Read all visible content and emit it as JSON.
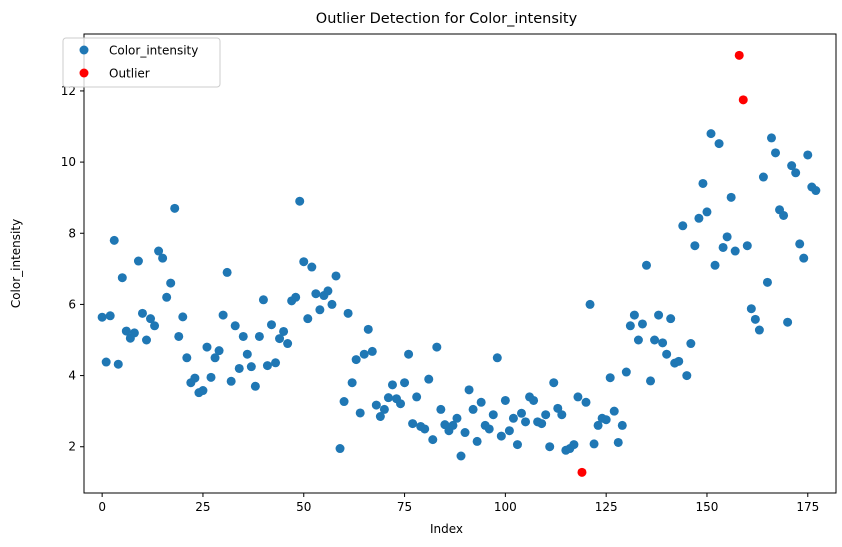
{
  "chart_data": {
    "type": "scatter",
    "title": "Outlier Detection for Color_intensity",
    "xlabel": "Index",
    "ylabel": "Color_intensity",
    "xlim": [
      -4.5,
      182
    ],
    "ylim": [
      0.7,
      13.6
    ],
    "xticks": [
      0,
      25,
      50,
      75,
      100,
      125,
      150,
      175
    ],
    "yticks": [
      2,
      4,
      6,
      8,
      10,
      12
    ],
    "grid": false,
    "legend": "top-left",
    "series": [
      {
        "name": "Color_intensity",
        "color": "#1f77b4",
        "x": [
          0,
          1,
          2,
          3,
          4,
          5,
          6,
          7,
          8,
          9,
          10,
          11,
          12,
          13,
          14,
          15,
          16,
          17,
          18,
          19,
          20,
          21,
          22,
          23,
          24,
          25,
          26,
          27,
          28,
          29,
          30,
          31,
          32,
          33,
          34,
          35,
          36,
          37,
          38,
          39,
          40,
          41,
          42,
          43,
          44,
          45,
          46,
          47,
          48,
          49,
          50,
          51,
          52,
          53,
          54,
          55,
          56,
          57,
          58,
          59,
          60,
          61,
          62,
          63,
          64,
          65,
          66,
          67,
          68,
          69,
          70,
          71,
          72,
          73,
          74,
          75,
          76,
          77,
          78,
          79,
          80,
          81,
          82,
          83,
          84,
          85,
          86,
          87,
          88,
          89,
          90,
          91,
          92,
          93,
          94,
          95,
          96,
          97,
          98,
          99,
          100,
          101,
          102,
          103,
          104,
          105,
          106,
          107,
          108,
          109,
          110,
          111,
          112,
          113,
          114,
          115,
          116,
          117,
          118,
          120,
          121,
          122,
          123,
          124,
          125,
          126,
          127,
          128,
          129,
          130,
          131,
          132,
          133,
          134,
          135,
          136,
          137,
          138,
          139,
          140,
          141,
          142,
          143,
          144,
          145,
          146,
          147,
          148,
          149,
          150,
          151,
          152,
          153,
          154,
          155,
          156,
          157,
          160,
          161,
          162,
          163,
          164,
          165,
          166,
          167,
          168,
          169,
          170,
          171,
          172,
          173,
          174,
          175,
          176,
          177
        ],
        "y": [
          5.64,
          4.38,
          5.68,
          7.8,
          4.32,
          6.75,
          5.25,
          5.05,
          5.2,
          7.22,
          5.75,
          5.0,
          5.6,
          5.4,
          7.5,
          7.3,
          6.2,
          6.6,
          8.7,
          5.1,
          5.65,
          4.5,
          3.8,
          3.93,
          3.52,
          3.58,
          4.8,
          3.95,
          4.5,
          4.7,
          5.7,
          6.9,
          3.84,
          5.4,
          4.2,
          5.1,
          4.6,
          4.25,
          3.7,
          5.1,
          6.13,
          4.28,
          5.43,
          4.36,
          5.04,
          5.24,
          4.9,
          6.1,
          6.2,
          8.9,
          7.2,
          5.6,
          7.05,
          6.3,
          5.85,
          6.25,
          6.38,
          6.0,
          6.8,
          1.95,
          3.27,
          5.75,
          3.8,
          4.45,
          2.95,
          4.6,
          5.3,
          4.68,
          3.17,
          2.85,
          3.05,
          3.38,
          3.74,
          3.35,
          3.21,
          3.8,
          4.6,
          2.65,
          3.4,
          2.57,
          2.5,
          3.9,
          2.2,
          4.8,
          3.05,
          2.62,
          2.45,
          2.6,
          2.8,
          1.74,
          2.4,
          3.6,
          3.05,
          2.15,
          3.25,
          2.6,
          2.5,
          2.9,
          4.5,
          2.3,
          3.3,
          2.45,
          2.8,
          2.06,
          2.94,
          2.7,
          3.4,
          3.3,
          2.7,
          2.65,
          2.9,
          2.0,
          3.8,
          3.08,
          2.9,
          1.9,
          1.95,
          2.06,
          3.4,
          3.25,
          6.0,
          2.08,
          2.6,
          2.8,
          2.76,
          3.94,
          3.0,
          2.12,
          2.6,
          4.1,
          5.4,
          5.7,
          5.0,
          5.45,
          7.1,
          3.85,
          5.0,
          5.7,
          4.92,
          4.6,
          5.6,
          4.35,
          4.4,
          8.21,
          4.0,
          4.9,
          7.65,
          8.42,
          9.4,
          8.6,
          10.8,
          7.1,
          10.52,
          7.6,
          7.9,
          9.01,
          7.5,
          7.65,
          5.88,
          5.58,
          5.28,
          9.58,
          6.62,
          10.68,
          10.26,
          8.66,
          8.5,
          5.5,
          9.899,
          9.7,
          7.7,
          7.3,
          10.2,
          9.3,
          9.2
        ]
      },
      {
        "name": "Outlier",
        "color": "#ff0000",
        "x": [
          119,
          158,
          159
        ],
        "y": [
          1.28,
          13.0,
          11.75
        ]
      }
    ]
  }
}
